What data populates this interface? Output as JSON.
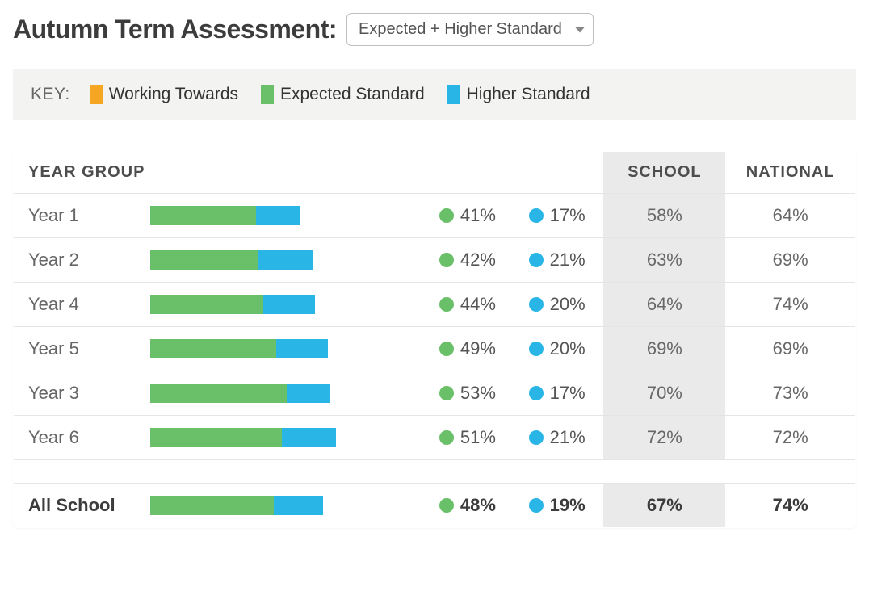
{
  "header": {
    "title": "Autumn Term Assessment:",
    "dropdown_selected": "Expected + Higher Standard"
  },
  "colors": {
    "working_towards": "#f5a623",
    "expected": "#6abf69",
    "higher": "#29b6e6",
    "school_column_bg": "#eaeaea",
    "text_primary": "#3c3c3c",
    "text_secondary": "#666666",
    "border": "#d6d6d6"
  },
  "key": {
    "label": "KEY:",
    "items": [
      {
        "label": "Working Towards",
        "color_key": "working_towards"
      },
      {
        "label": "Expected Standard",
        "color_key": "expected"
      },
      {
        "label": "Higher Standard",
        "color_key": "higher"
      }
    ]
  },
  "table": {
    "columns": {
      "year_group": "YEAR GROUP",
      "school": "SCHOOL",
      "national": "NATIONAL"
    },
    "bar_scale_max": 100,
    "rows": [
      {
        "label": "Year 1",
        "expected_pct": 41,
        "higher_pct": 17,
        "school_pct": 58,
        "national_pct": 64
      },
      {
        "label": "Year 2",
        "expected_pct": 42,
        "higher_pct": 21,
        "school_pct": 63,
        "national_pct": 69
      },
      {
        "label": "Year 4",
        "expected_pct": 44,
        "higher_pct": 20,
        "school_pct": 64,
        "national_pct": 74
      },
      {
        "label": "Year 5",
        "expected_pct": 49,
        "higher_pct": 20,
        "school_pct": 69,
        "national_pct": 69
      },
      {
        "label": "Year 3",
        "expected_pct": 53,
        "higher_pct": 17,
        "school_pct": 70,
        "national_pct": 73
      },
      {
        "label": "Year 6",
        "expected_pct": 51,
        "higher_pct": 21,
        "school_pct": 72,
        "national_pct": 72
      }
    ],
    "totals": {
      "label": "All School",
      "expected_pct": 48,
      "higher_pct": 19,
      "school_pct": 67,
      "national_pct": 74
    }
  }
}
